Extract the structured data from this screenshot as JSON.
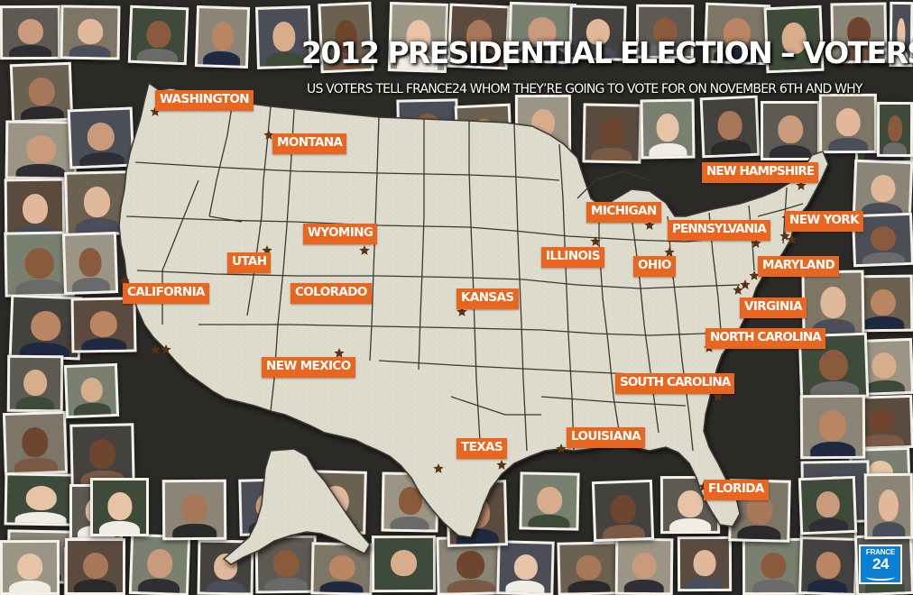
{
  "header": {
    "title": "2012 PRESIDENTIAL ELECTION – VOTERS’ VOICES",
    "subtitle": "US VOTERS TELL FRANCE24 WHOM THEY’RE GOING TO VOTE FOR ON NOVEMBER 6TH AND WHY"
  },
  "logo": {
    "brand": "FRANCE",
    "number": "24"
  },
  "colors": {
    "label_bg": "#e8661f",
    "map_fill": "#dedccd",
    "state_border": "#3b3833",
    "background": "#2b2a27",
    "logo_bg": "#0d7fd3"
  },
  "states": [
    {
      "id": "washington",
      "label": "WASHINGTON"
    },
    {
      "id": "montana",
      "label": "MONTANA"
    },
    {
      "id": "wyoming",
      "label": "WYOMING"
    },
    {
      "id": "utah",
      "label": "UTAH"
    },
    {
      "id": "colorado",
      "label": "COLORADO"
    },
    {
      "id": "california",
      "label": "CALIFORNIA"
    },
    {
      "id": "new-mexico",
      "label": "NEW MEXICO"
    },
    {
      "id": "kansas",
      "label": "KANSAS"
    },
    {
      "id": "texas",
      "label": "TEXAS"
    },
    {
      "id": "louisiana",
      "label": "LOUISIANA"
    },
    {
      "id": "illinois",
      "label": "ILLINOIS"
    },
    {
      "id": "michigan",
      "label": "MICHIGAN"
    },
    {
      "id": "ohio",
      "label": "OHIO"
    },
    {
      "id": "pennsylvania",
      "label": "PENNSYLVANIA"
    },
    {
      "id": "new-hampshire",
      "label": "NEW HAMPSHIRE"
    },
    {
      "id": "new-york",
      "label": "NEW YORK"
    },
    {
      "id": "maryland",
      "label": "MARYLAND"
    },
    {
      "id": "virginia",
      "label": "VIRGINIA"
    },
    {
      "id": "north-carolina",
      "label": "NORTH CAROLINA"
    },
    {
      "id": "south-carolina",
      "label": "SOUTH CAROLINA"
    },
    {
      "id": "florida",
      "label": "FLORIDA"
    }
  ],
  "marker_icon": "star-icon"
}
